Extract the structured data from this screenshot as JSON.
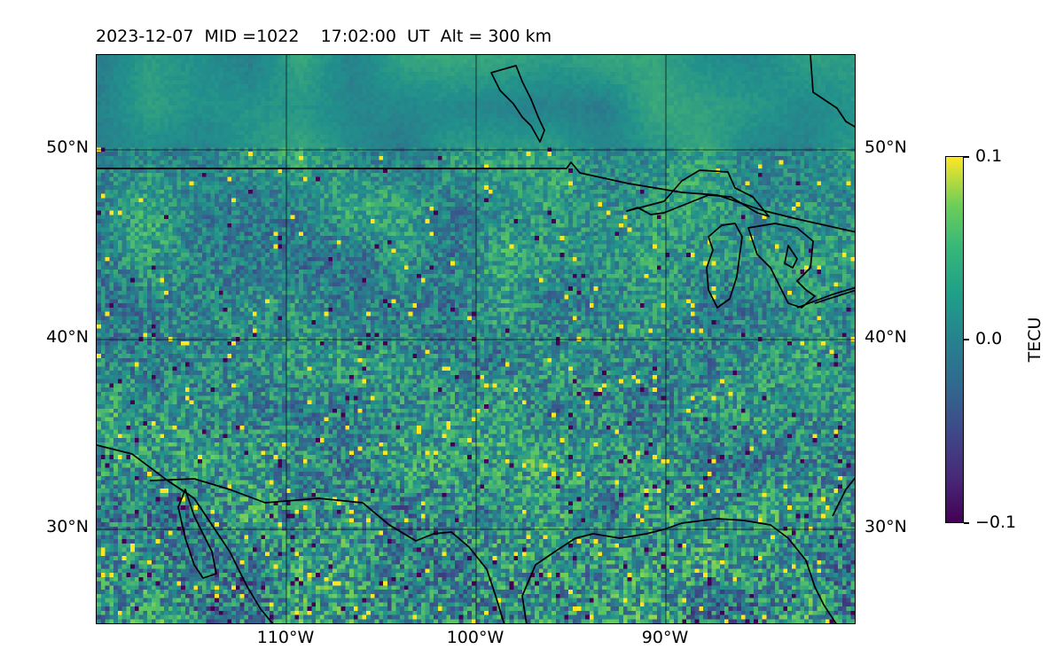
{
  "title": "2023-12-07  MID =1022    17:02:00  UT  Alt = 300 km",
  "lat_ticks_left": [
    "50°N",
    "40°N",
    "30°N"
  ],
  "lat_ticks_right": [
    "50°N",
    "40°N",
    "30°N"
  ],
  "lon_ticks": [
    "110°W",
    "100°W",
    "90°W"
  ],
  "colorbar": {
    "label": "TECU",
    "ticks": [
      "0.1",
      "0.0",
      "−0.1"
    ],
    "colormap": "viridis",
    "min": -0.1,
    "max": 0.1
  },
  "map": {
    "lon_range": [
      -120,
      -80
    ],
    "lat_range": [
      25,
      55
    ],
    "gridlines": true,
    "field_colors": [
      "#440154",
      "#31688e",
      "#21918c",
      "#35b779",
      "#fde725"
    ]
  }
}
